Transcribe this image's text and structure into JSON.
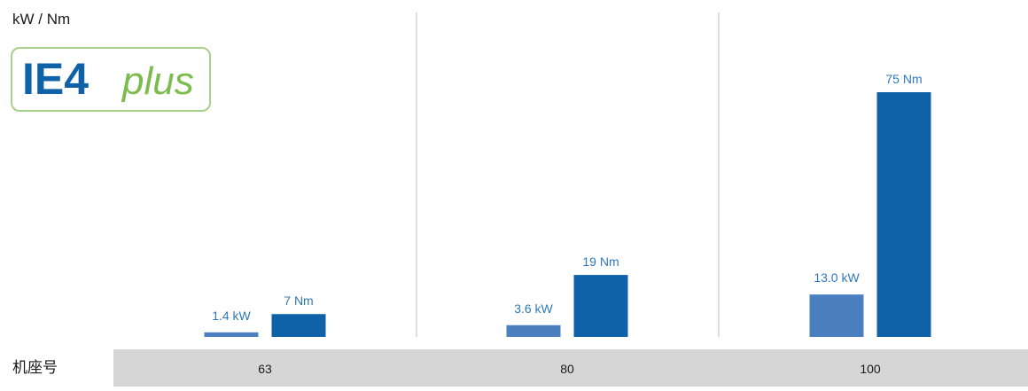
{
  "chart_data": {
    "type": "bar",
    "title": "",
    "ylabel": "kW / Nm",
    "xlabel": "机座号",
    "categories": [
      "63",
      "80",
      "100"
    ],
    "series": [
      {
        "name": "",
        "unit": "kW",
        "values": [
          1.4,
          3.6,
          13.0
        ],
        "labels": [
          "1.4 kW",
          "3.6 kW",
          "13.0 kW"
        ],
        "color": "#4a80c0"
      },
      {
        "name": "",
        "unit": "Nm",
        "values": [
          7,
          19,
          75
        ],
        "labels": [
          "7 Nm",
          "19 Nm",
          "75 Nm"
        ],
        "color": "#0f62a8"
      }
    ],
    "grid": false,
    "legend": "none",
    "category_separators": true
  },
  "logo": {
    "text_main": "IE4",
    "text_sub": "plus",
    "border_color": "#a8d08d",
    "main_color": "#0f62a8",
    "sub_color": "#7cbc4e"
  },
  "colors": {
    "axis_band": "#d6d6d6",
    "separator": "#bdbdbd",
    "label": "#2f78bd"
  }
}
